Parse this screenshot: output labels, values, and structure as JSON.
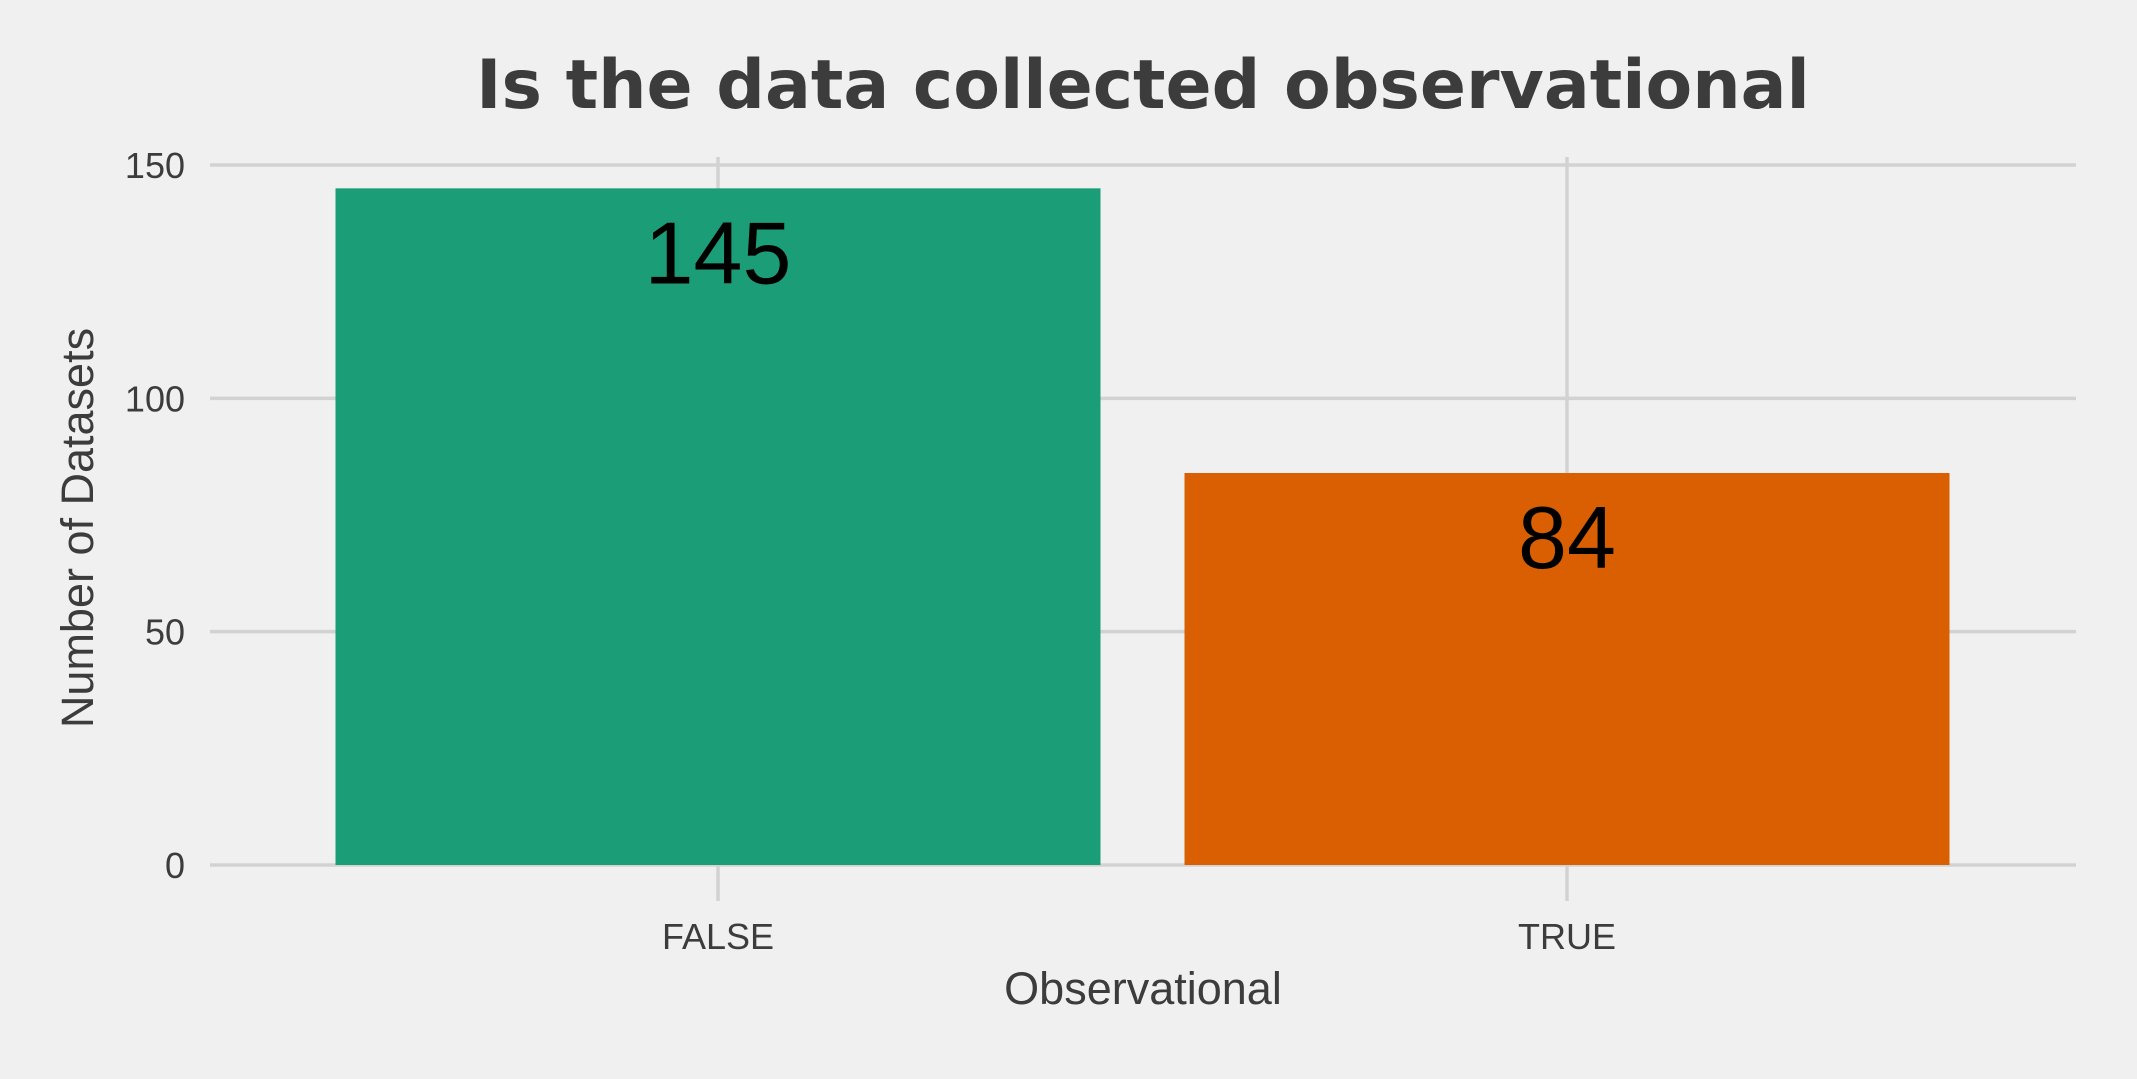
{
  "chart_data": {
    "type": "bar",
    "title": "Is the data collected observational",
    "xlabel": "Observational",
    "ylabel": "Number of Datasets",
    "categories": [
      "FALSE",
      "TRUE"
    ],
    "values": [
      145,
      84
    ],
    "data_labels": [
      "145",
      "84"
    ],
    "colors": [
      "#1b9e77",
      "#d95f02"
    ],
    "ylim": [
      0,
      150
    ],
    "yticks": [
      0,
      50,
      100,
      150
    ],
    "ytick_labels": [
      "0",
      "50",
      "100",
      "150"
    ],
    "grid": true,
    "legend": "none"
  },
  "theme": {
    "background": "#f0f0f0",
    "grid_color": "#d2d2d2",
    "text_color": "#3c3c3c"
  }
}
